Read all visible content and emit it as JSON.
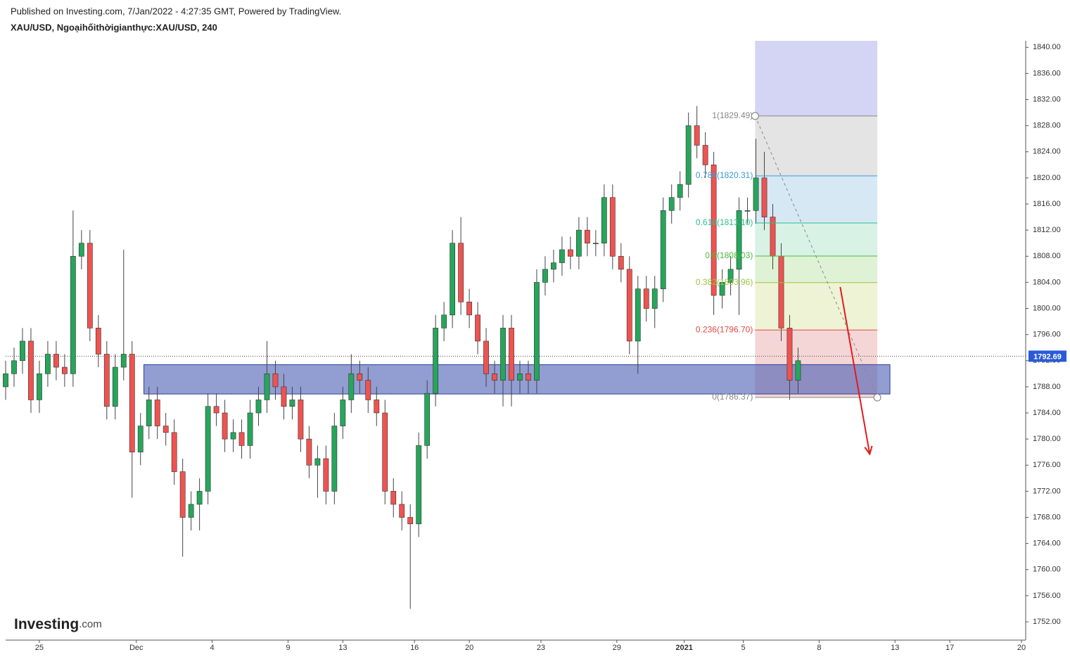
{
  "header": {
    "published": "Published on Investing.com, 7/Jan/2022 - 4:27:35 GMT, Powered by TradingView.",
    "symbol_title": "XAU/USD, Ngoạihốithờigianthực:XAU/USD, 240",
    "logo": "Investing",
    "logo_suffix": ".com"
  },
  "chart_data": {
    "type": "candlestick",
    "up_color": "#26a65b",
    "down_color": "#ef5350",
    "x": [
      0,
      2,
      4,
      6,
      8,
      10,
      12,
      14,
      16,
      18,
      20,
      22,
      24,
      26,
      28,
      30,
      32,
      34,
      36,
      38,
      40,
      42,
      44,
      46,
      48,
      50,
      52,
      54,
      56,
      58,
      60,
      62,
      64,
      66,
      68,
      70,
      72,
      74,
      76,
      78,
      80,
      82,
      84,
      86,
      88,
      90,
      92,
      94,
      96,
      98,
      100,
      102,
      104,
      106,
      108,
      110,
      112,
      114,
      116,
      118,
      120,
      122,
      124,
      126,
      128,
      130,
      132,
      134,
      136,
      138,
      140,
      142,
      144,
      146,
      148,
      150,
      152,
      154,
      156,
      158,
      160,
      162,
      164,
      166,
      168,
      170,
      172,
      174,
      176,
      178,
      180,
      182,
      184,
      186,
      188
    ],
    "open": [
      1788,
      1790,
      1792,
      1795,
      1786,
      1790,
      1793,
      1791,
      1790,
      1808,
      1810,
      1797,
      1793,
      1785,
      1791,
      1793,
      1778,
      1782,
      1786,
      1782,
      1781,
      1775,
      1768,
      1770,
      1772,
      1785,
      1784,
      1780,
      1781,
      1779,
      1784,
      1786,
      1790,
      1788,
      1785,
      1786,
      1780,
      1776,
      1777,
      1772,
      1782,
      1786,
      1790,
      1789,
      1786,
      1784,
      1772,
      1770,
      1768,
      1767,
      1779,
      1787,
      1797,
      1799,
      1810,
      1801,
      1799,
      1795,
      1790,
      1789,
      1797,
      1789,
      1790,
      1789,
      1804,
      1806,
      1807,
      1809,
      1808,
      1812,
      1810,
      1810,
      1817,
      1808,
      1806,
      1795,
      1803,
      1800,
      1803,
      1815,
      1817,
      1819,
      1828,
      1825,
      1822,
      1802,
      1804,
      1806,
      1815,
      1815,
      1820,
      1814,
      1808,
      1797,
      1789
    ],
    "high": [
      1792,
      1794,
      1797,
      1797,
      1792,
      1795,
      1795,
      1793,
      1815,
      1812,
      1812,
      1799,
      1795,
      1793,
      1809,
      1795,
      1784,
      1788,
      1788,
      1784,
      1783,
      1777,
      1772,
      1774,
      1787,
      1787,
      1786,
      1783,
      1783,
      1786,
      1788,
      1795,
      1792,
      1790,
      1788,
      1788,
      1782,
      1779,
      1779,
      1784,
      1788,
      1793,
      1792,
      1791,
      1788,
      1786,
      1774,
      1772,
      1770,
      1781,
      1789,
      1799,
      1801,
      1812,
      1814,
      1803,
      1801,
      1797,
      1792,
      1799,
      1799,
      1792,
      1792,
      1806,
      1808,
      1809,
      1811,
      1811,
      1814,
      1814,
      1812,
      1819,
      1819,
      1810,
      1808,
      1805,
      1805,
      1805,
      1817,
      1819,
      1821,
      1830,
      1831,
      1827,
      1824,
      1806,
      1808,
      1817,
      1817,
      1826,
      1824,
      1816,
      1810,
      1799,
      1794
    ],
    "low": [
      1786,
      1788,
      1790,
      1784,
      1784,
      1788,
      1789,
      1788,
      1788,
      1806,
      1795,
      1791,
      1783,
      1783,
      1789,
      1771,
      1776,
      1780,
      1780,
      1779,
      1773,
      1762,
      1766,
      1766,
      1770,
      1782,
      1778,
      1778,
      1777,
      1777,
      1782,
      1784,
      1786,
      1783,
      1783,
      1778,
      1774,
      1771,
      1770,
      1770,
      1780,
      1784,
      1787,
      1784,
      1782,
      1770,
      1768,
      1766,
      1754,
      1765,
      1777,
      1785,
      1795,
      1797,
      1799,
      1797,
      1793,
      1788,
      1787,
      1785,
      1785,
      1787,
      1787,
      1787,
      1802,
      1804,
      1805,
      1806,
      1806,
      1808,
      1808,
      1808,
      1806,
      1804,
      1793,
      1790,
      1798,
      1797,
      1801,
      1813,
      1815,
      1817,
      1823,
      1820,
      1799,
      1800,
      1802,
      1799,
      1813,
      1813,
      1812,
      1806,
      1795,
      1786,
      1787
    ],
    "close": [
      1790,
      1792,
      1795,
      1786,
      1790,
      1793,
      1791,
      1790,
      1808,
      1810,
      1797,
      1793,
      1785,
      1791,
      1793,
      1778,
      1782,
      1786,
      1782,
      1781,
      1775,
      1768,
      1770,
      1772,
      1785,
      1784,
      1780,
      1781,
      1779,
      1784,
      1786,
      1790,
      1788,
      1785,
      1786,
      1780,
      1776,
      1777,
      1772,
      1782,
      1786,
      1790,
      1789,
      1786,
      1784,
      1772,
      1770,
      1768,
      1767,
      1779,
      1787,
      1797,
      1799,
      1810,
      1801,
      1799,
      1795,
      1790,
      1789,
      1797,
      1789,
      1790,
      1789,
      1804,
      1806,
      1807,
      1809,
      1808,
      1812,
      1810,
      1810,
      1817,
      1808,
      1806,
      1795,
      1803,
      1800,
      1803,
      1815,
      1817,
      1819,
      1828,
      1825,
      1822,
      1802,
      1804,
      1806,
      1815,
      1815,
      1820,
      1814,
      1808,
      1797,
      1789,
      1792
    ],
    "xlim": [
      0,
      242
    ],
    "xticks": [
      {
        "value": 8,
        "label": "25"
      },
      {
        "value": 31,
        "label": "Dec"
      },
      {
        "value": 49,
        "label": "4"
      },
      {
        "value": 67,
        "label": "9"
      },
      {
        "value": 80,
        "label": "13"
      },
      {
        "value": 97,
        "label": "16"
      },
      {
        "value": 110,
        "label": "20"
      },
      {
        "value": 127,
        "label": "23"
      },
      {
        "value": 145,
        "label": "29"
      },
      {
        "value": 161,
        "label": "2021"
      },
      {
        "value": 175,
        "label": "5"
      },
      {
        "value": 193,
        "label": "8"
      },
      {
        "value": 211,
        "label": "13"
      },
      {
        "value": 224,
        "label": "17"
      },
      {
        "value": 241,
        "label": "20"
      }
    ],
    "ylim": [
      1749.2,
      1841
    ],
    "yticks": [
      {
        "value": 1752,
        "label": "1752.00"
      },
      {
        "value": 1756,
        "label": "1756.00"
      },
      {
        "value": 1760,
        "label": "1760.00"
      },
      {
        "value": 1764,
        "label": "1764.00"
      },
      {
        "value": 1768,
        "label": "1768.00"
      },
      {
        "value": 1772,
        "label": "1772.00"
      },
      {
        "value": 1776,
        "label": "1776.00"
      },
      {
        "value": 1780,
        "label": "1780.00"
      },
      {
        "value": 1784,
        "label": "1784.00"
      },
      {
        "value": 1788,
        "label": "1788.00"
      },
      {
        "value": 1792,
        "label": "1792.00"
      },
      {
        "value": 1796,
        "label": "1796.00"
      },
      {
        "value": 1800,
        "label": "1800.00"
      },
      {
        "value": 1804,
        "label": "1804.00"
      },
      {
        "value": 1808,
        "label": "1808.00"
      },
      {
        "value": 1812,
        "label": "1812.00"
      },
      {
        "value": 1816,
        "label": "1816.00"
      },
      {
        "value": 1820,
        "label": "1820.00"
      },
      {
        "value": 1824,
        "label": "1824.00"
      },
      {
        "value": 1828,
        "label": "1828.00"
      },
      {
        "value": 1832,
        "label": "1832.00"
      },
      {
        "value": 1836,
        "label": "1836.00"
      },
      {
        "value": 1840,
        "label": "1840.00"
      }
    ],
    "last_price": {
      "value": 1792.69,
      "label": "1792.69",
      "color": "#2a5ad8"
    },
    "zone": {
      "x": [
        32.8,
        209.8
      ],
      "y": [
        1786.9,
        1791.4
      ],
      "color": "#4a5cb4"
    },
    "fib": {
      "x_range": [
        177.8,
        206.8
      ],
      "top_fill": "#d4d4f4",
      "levels": [
        {
          "price": 1829.49,
          "label": "1(1829.49)",
          "color": "#888888",
          "fill": "#e4e4e4"
        },
        {
          "price": 1820.31,
          "label": "0.786(1820.31)",
          "color": "#3a9ad9",
          "fill": "#d6e8f4"
        },
        {
          "price": 1813.1,
          "label": "0.618(1813.10)",
          "color": "#2bbf8f",
          "fill": "#d8f2e6"
        },
        {
          "price": 1808.03,
          "label": "0.5(1808.03)",
          "color": "#4cbb3c",
          "fill": "#dff2d6"
        },
        {
          "price": 1803.96,
          "label": "0.382(1803.96)",
          "color": "#9bc53d",
          "fill": "#eef3d6"
        },
        {
          "price": 1796.7,
          "label": "0.236(1796.70)",
          "color": "#e04848",
          "fill": "#f5d6d6"
        },
        {
          "price": 1786.37,
          "label": "0(1786.37)",
          "color": "#888888"
        }
      ]
    },
    "arrow": {
      "x": [
        198,
        205
      ],
      "y": [
        1803.3,
        1777.7
      ],
      "color": "#e31b1b"
    }
  }
}
